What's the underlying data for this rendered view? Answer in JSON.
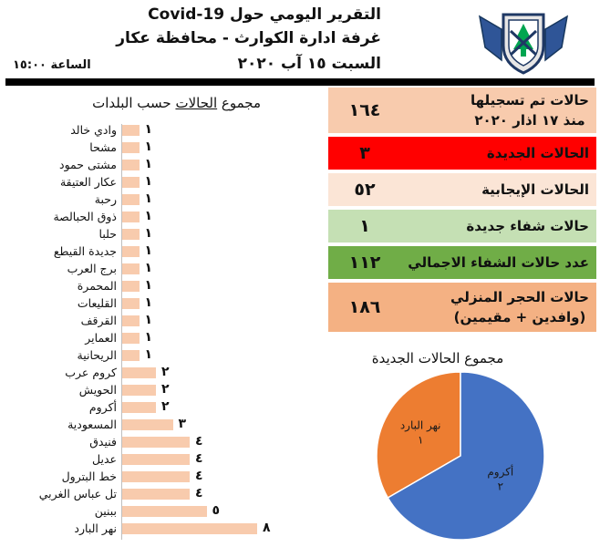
{
  "header": {
    "title_line1": "التقرير اليومي حول Covid-19",
    "title_line2": "غرفة ادارة الكوارث - محافظة عكار",
    "date": "السبت ١٥ آب ٢٠٢٠",
    "time": "الساعة ١٥:٠٠"
  },
  "colors": {
    "bar": "#f8cbad",
    "pie_orange": "#ed7d31",
    "pie_blue": "#4472c4"
  },
  "stats": [
    {
      "label_line1": "حالات تم تسجيلها",
      "label_line2": "منذ ١٧ اذار ٢٠٢٠",
      "value": "١٦٤",
      "color": "#f8cbad"
    },
    {
      "label_line1": "الحالات الجديدة",
      "label_line2": "",
      "value": "٣",
      "color": "#ff0000"
    },
    {
      "label_line1": "الحالات الإيجابية",
      "label_line2": "",
      "value": "٥٢",
      "color": "#fbe5d6"
    },
    {
      "label_line1": "حالات شفاء جديدة",
      "label_line2": "",
      "value": "١",
      "color": "#c5e0b4"
    },
    {
      "label_line1": "عدد حالات الشفاء الاجمالي",
      "label_line2": "",
      "value": "١١٢",
      "color": "#70ad47"
    },
    {
      "label_line1": "حالات الحجر المنزلي",
      "label_line2": "(وافدين + مقيمين)",
      "value": "١٨٦",
      "color": "#f4b183"
    }
  ],
  "chart_data": [
    {
      "type": "bar",
      "title": "مجموع الحالات حسب البلدات",
      "title_plain": "مجموع",
      "title_underlined": "الحالات",
      "title_rest": "حسب البلدات",
      "categories": [
        "وادي خالد",
        "مشحا",
        "مشتى حمود",
        "عكار العتيقة",
        "رحبة",
        "ذوق الحبالصة",
        "حلبا",
        "جديدة القيطع",
        "برج العرب",
        "المحمرة",
        "القليعات",
        "القرقف",
        "العماير",
        "الريحانية",
        "كروم عرب",
        "الحويش",
        "أكروم",
        "المسعودية",
        "فنيدق",
        "عديل",
        "خط البترول",
        "تل عباس الغربي",
        "ببنين",
        "نهر البارد"
      ],
      "values": [
        1,
        1,
        1,
        1,
        1,
        1,
        1,
        1,
        1,
        1,
        1,
        1,
        1,
        1,
        2,
        2,
        2,
        3,
        4,
        4,
        4,
        4,
        5,
        8
      ],
      "value_labels": [
        "١",
        "١",
        "١",
        "١",
        "١",
        "١",
        "١",
        "١",
        "١",
        "١",
        "١",
        "١",
        "١",
        "١",
        "٢",
        "٢",
        "٢",
        "٣",
        "٤",
        "٤",
        "٤",
        "٤",
        "٥",
        "٨"
      ]
    },
    {
      "type": "pie",
      "title": "مجموع الحالات الجديدة",
      "slices": [
        {
          "label": "نهر البارد",
          "value": 1,
          "value_label": "١",
          "color": "#ed7d31"
        },
        {
          "label": "أكروم",
          "value": 2,
          "value_label": "٢",
          "color": "#4472c4"
        }
      ]
    }
  ]
}
